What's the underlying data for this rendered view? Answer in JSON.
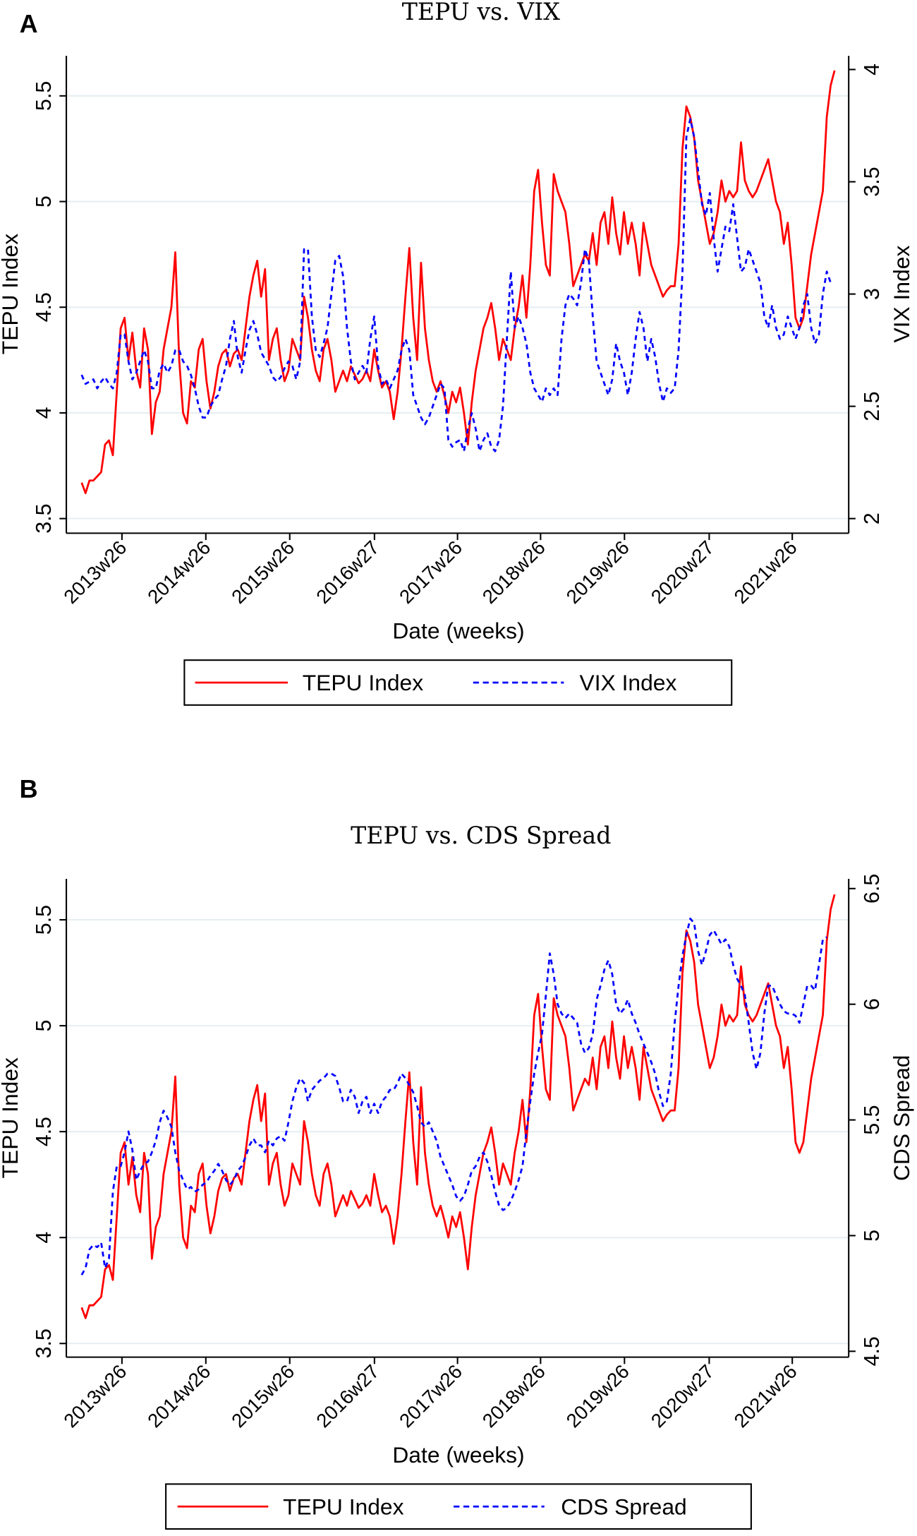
{
  "chart_data": [
    {
      "panel_letter": "A",
      "type": "line",
      "title": "TEPU vs. VIX",
      "xlabel": "Date (weeks)",
      "ylabel_left": "TEPU Index",
      "ylabel_right": "VIX Index",
      "x_ticks": [
        {
          "label": "2013w26",
          "year": 2013.5
        },
        {
          "label": "2014w26",
          "year": 2014.5
        },
        {
          "label": "2015w26",
          "year": 2015.5
        },
        {
          "label": "2016w27",
          "year": 2016.51
        },
        {
          "label": "2017w26",
          "year": 2017.5
        },
        {
          "label": "2018w26",
          "year": 2018.49
        },
        {
          "label": "2019w26",
          "year": 2019.49
        },
        {
          "label": "2020w27",
          "year": 2020.5
        },
        {
          "label": "2021w26",
          "year": 2021.49
        }
      ],
      "ylim_left": [
        3.5,
        5.5
      ],
      "yticks_left": [
        "3.5",
        "4",
        "4.5",
        "5",
        "5.5"
      ],
      "ylim_right": [
        2,
        4
      ],
      "yticks_right": [
        "2",
        "2.5",
        "3",
        "3.5",
        "4"
      ],
      "grid": true,
      "legend": {
        "placement": "bottom",
        "entries": [
          "TEPU Index",
          "VIX Index"
        ]
      },
      "colors": {
        "left": "#ff0000",
        "right": "#0000ff",
        "grid": "#e6eef2"
      },
      "x_start": 2013.02,
      "x_step": 0.0465,
      "series": [
        {
          "name": "TEPU Index",
          "axis": "left",
          "style": "solid",
          "values": [
            3.67,
            3.62,
            3.68,
            3.68,
            3.7,
            3.72,
            3.85,
            3.87,
            3.8,
            4.1,
            4.4,
            4.45,
            4.25,
            4.38,
            4.2,
            4.12,
            4.4,
            4.3,
            3.9,
            4.05,
            4.1,
            4.3,
            4.4,
            4.5,
            4.76,
            4.25,
            4.0,
            3.95,
            4.15,
            4.12,
            4.3,
            4.35,
            4.15,
            4.02,
            4.1,
            4.22,
            4.28,
            4.3,
            4.22,
            4.28,
            4.3,
            4.25,
            4.4,
            4.55,
            4.65,
            4.72,
            4.55,
            4.68,
            4.25,
            4.35,
            4.4,
            4.25,
            4.15,
            4.2,
            4.35,
            4.3,
            4.25,
            4.55,
            4.45,
            4.3,
            4.2,
            4.15,
            4.3,
            4.35,
            4.25,
            4.1,
            4.15,
            4.2,
            4.15,
            4.22,
            4.18,
            4.14,
            4.16,
            4.2,
            4.15,
            4.3,
            4.2,
            4.12,
            4.15,
            4.1,
            3.97,
            4.1,
            4.3,
            4.55,
            4.78,
            4.45,
            4.25,
            4.71,
            4.4,
            4.25,
            4.15,
            4.1,
            4.15,
            4.08,
            4.0,
            4.1,
            4.05,
            4.12,
            4.0,
            3.85,
            4.05,
            4.2,
            4.3,
            4.4,
            4.45,
            4.52,
            4.4,
            4.25,
            4.35,
            4.3,
            4.25,
            4.4,
            4.5,
            4.65,
            4.45,
            4.7,
            5.05,
            5.15,
            4.9,
            4.7,
            4.65,
            5.13,
            5.05,
            5.0,
            4.95,
            4.8,
            4.6,
            4.65,
            4.7,
            4.75,
            4.72,
            4.85,
            4.7,
            4.9,
            4.95,
            4.8,
            5.02,
            4.85,
            4.75,
            4.95,
            4.8,
            4.9,
            4.8,
            4.65,
            4.9,
            4.8,
            4.7,
            4.65,
            4.6,
            4.55,
            4.58,
            4.6,
            4.6,
            4.8,
            5.25,
            5.45,
            5.4,
            5.3,
            5.1,
            5.0,
            4.9,
            4.8,
            4.85,
            4.95,
            5.1,
            5.0,
            5.05,
            5.02,
            5.05,
            5.28,
            5.1,
            5.05,
            5.02,
            5.05,
            5.1,
            5.15,
            5.2,
            5.1,
            5.0,
            4.95,
            4.8,
            4.9,
            4.7,
            4.45,
            4.4,
            4.45,
            4.6,
            4.75,
            4.85,
            4.95,
            5.05,
            5.4,
            5.55,
            5.62
          ]
        },
        {
          "name": "VIX Index",
          "axis": "right",
          "style": "dashed",
          "values": [
            2.64,
            2.6,
            2.61,
            2.62,
            2.58,
            2.61,
            2.63,
            2.6,
            2.58,
            2.65,
            2.82,
            2.82,
            2.7,
            2.62,
            2.65,
            2.7,
            2.75,
            2.7,
            2.58,
            2.58,
            2.66,
            2.69,
            2.65,
            2.68,
            2.75,
            2.75,
            2.7,
            2.68,
            2.64,
            2.58,
            2.5,
            2.45,
            2.45,
            2.5,
            2.53,
            2.55,
            2.62,
            2.68,
            2.8,
            2.88,
            2.72,
            2.65,
            2.75,
            2.84,
            2.88,
            2.82,
            2.74,
            2.71,
            2.68,
            2.63,
            2.61,
            2.63,
            2.67,
            2.7,
            2.68,
            2.62,
            2.7,
            3.2,
            3.2,
            2.9,
            2.75,
            2.72,
            2.78,
            2.85,
            3.0,
            3.15,
            3.17,
            3.08,
            2.85,
            2.7,
            2.62,
            2.65,
            2.68,
            2.65,
            2.8,
            2.9,
            2.68,
            2.6,
            2.62,
            2.58,
            2.62,
            2.66,
            2.75,
            2.8,
            2.75,
            2.55,
            2.5,
            2.45,
            2.42,
            2.45,
            2.5,
            2.55,
            2.6,
            2.58,
            2.35,
            2.32,
            2.34,
            2.35,
            2.3,
            2.4,
            2.47,
            2.4,
            2.3,
            2.35,
            2.38,
            2.32,
            2.3,
            2.35,
            2.5,
            2.8,
            3.1,
            2.85,
            2.9,
            2.85,
            2.78,
            2.65,
            2.58,
            2.55,
            2.52,
            2.58,
            2.55,
            2.58,
            2.55,
            2.8,
            2.95,
            3.0,
            2.98,
            2.95,
            3.05,
            3.2,
            3.15,
            2.9,
            2.7,
            2.65,
            2.6,
            2.55,
            2.62,
            2.78,
            2.7,
            2.65,
            2.55,
            2.65,
            2.8,
            2.92,
            2.85,
            2.7,
            2.8,
            2.72,
            2.6,
            2.52,
            2.58,
            2.56,
            2.58,
            2.75,
            3.1,
            3.7,
            3.78,
            3.7,
            3.55,
            3.4,
            3.35,
            3.45,
            3.25,
            3.1,
            3.2,
            3.3,
            3.28,
            3.4,
            3.25,
            3.1,
            3.12,
            3.2,
            3.15,
            3.1,
            3.05,
            2.9,
            2.85,
            2.95,
            2.85,
            2.8,
            2.82,
            2.9,
            2.85,
            2.8,
            2.85,
            2.95,
            3.0,
            2.85,
            2.78,
            2.82,
            3.0,
            3.1,
            3.05
          ]
        }
      ]
    },
    {
      "panel_letter": "B",
      "type": "line",
      "title": "TEPU vs. CDS Spread",
      "xlabel": "Date (weeks)",
      "ylabel_left": "TEPU Index",
      "ylabel_right": "CDS Spread",
      "x_ticks": [
        {
          "label": "2013w26",
          "year": 2013.5
        },
        {
          "label": "2014w26",
          "year": 2014.5
        },
        {
          "label": "2015w26",
          "year": 2015.5
        },
        {
          "label": "2016w27",
          "year": 2016.51
        },
        {
          "label": "2017w26",
          "year": 2017.5
        },
        {
          "label": "2018w26",
          "year": 2018.49
        },
        {
          "label": "2019w26",
          "year": 2019.49
        },
        {
          "label": "2020w27",
          "year": 2020.5
        },
        {
          "label": "2021w26",
          "year": 2021.49
        }
      ],
      "ylim_left": [
        3.5,
        5.5
      ],
      "yticks_left": [
        "3.5",
        "4",
        "4.5",
        "5",
        "5.5"
      ],
      "ylim_right": [
        4.5,
        6.5
      ],
      "yticks_right": [
        "4.5",
        "5",
        "5.5",
        "6",
        "6.5"
      ],
      "grid": true,
      "legend": {
        "placement": "bottom",
        "entries": [
          "TEPU Index",
          "CDS Spread"
        ]
      },
      "colors": {
        "left": "#ff0000",
        "right": "#0000ff",
        "grid": "#e6eef2"
      },
      "x_start": 2013.02,
      "x_step": 0.0465,
      "series": [
        {
          "name": "TEPU Index",
          "axis": "left",
          "style": "solid",
          "values": [
            3.67,
            3.62,
            3.68,
            3.68,
            3.7,
            3.72,
            3.85,
            3.87,
            3.8,
            4.1,
            4.4,
            4.45,
            4.25,
            4.38,
            4.2,
            4.12,
            4.4,
            4.3,
            3.9,
            4.05,
            4.1,
            4.3,
            4.4,
            4.5,
            4.76,
            4.25,
            4.0,
            3.95,
            4.15,
            4.12,
            4.3,
            4.35,
            4.15,
            4.02,
            4.1,
            4.22,
            4.28,
            4.3,
            4.22,
            4.28,
            4.3,
            4.25,
            4.4,
            4.55,
            4.65,
            4.72,
            4.55,
            4.68,
            4.25,
            4.35,
            4.4,
            4.25,
            4.15,
            4.2,
            4.35,
            4.3,
            4.25,
            4.55,
            4.45,
            4.3,
            4.2,
            4.15,
            4.3,
            4.35,
            4.25,
            4.1,
            4.15,
            4.2,
            4.15,
            4.22,
            4.18,
            4.14,
            4.16,
            4.2,
            4.15,
            4.3,
            4.2,
            4.12,
            4.15,
            4.1,
            3.97,
            4.1,
            4.3,
            4.55,
            4.78,
            4.45,
            4.25,
            4.71,
            4.4,
            4.25,
            4.15,
            4.1,
            4.15,
            4.08,
            4.0,
            4.1,
            4.05,
            4.12,
            4.0,
            3.85,
            4.05,
            4.2,
            4.3,
            4.4,
            4.45,
            4.52,
            4.4,
            4.25,
            4.35,
            4.3,
            4.25,
            4.4,
            4.5,
            4.65,
            4.45,
            4.7,
            5.05,
            5.15,
            4.9,
            4.7,
            4.65,
            5.13,
            5.05,
            5.0,
            4.95,
            4.8,
            4.6,
            4.65,
            4.7,
            4.75,
            4.72,
            4.85,
            4.7,
            4.9,
            4.95,
            4.8,
            5.02,
            4.85,
            4.75,
            4.95,
            4.8,
            4.9,
            4.8,
            4.65,
            4.9,
            4.8,
            4.7,
            4.65,
            4.6,
            4.55,
            4.58,
            4.6,
            4.6,
            4.8,
            5.25,
            5.45,
            5.4,
            5.3,
            5.1,
            5.0,
            4.9,
            4.8,
            4.85,
            4.95,
            5.1,
            5.0,
            5.05,
            5.02,
            5.05,
            5.28,
            5.1,
            5.05,
            5.02,
            5.05,
            5.1,
            5.15,
            5.2,
            5.1,
            5.0,
            4.95,
            4.8,
            4.9,
            4.7,
            4.45,
            4.4,
            4.45,
            4.6,
            4.75,
            4.85,
            4.95,
            5.05,
            5.4,
            5.55,
            5.62
          ]
        },
        {
          "name": "CDS Spread",
          "axis": "right",
          "style": "dashed",
          "values": [
            4.83,
            4.86,
            4.94,
            4.96,
            4.95,
            4.97,
            4.86,
            4.9,
            5.19,
            5.3,
            5.3,
            5.36,
            5.45,
            5.37,
            5.24,
            5.28,
            5.31,
            5.32,
            5.36,
            5.41,
            5.49,
            5.54,
            5.51,
            5.47,
            5.36,
            5.28,
            5.24,
            5.2,
            5.21,
            5.19,
            5.2,
            5.22,
            5.23,
            5.26,
            5.28,
            5.31,
            5.28,
            5.24,
            5.22,
            5.24,
            5.28,
            5.3,
            5.34,
            5.39,
            5.42,
            5.39,
            5.39,
            5.36,
            5.41,
            5.39,
            5.42,
            5.43,
            5.41,
            5.49,
            5.58,
            5.64,
            5.68,
            5.66,
            5.58,
            5.63,
            5.65,
            5.67,
            5.68,
            5.7,
            5.7,
            5.69,
            5.64,
            5.58,
            5.58,
            5.63,
            5.6,
            5.53,
            5.58,
            5.6,
            5.53,
            5.57,
            5.53,
            5.58,
            5.6,
            5.63,
            5.63,
            5.66,
            5.7,
            5.68,
            5.65,
            5.62,
            5.56,
            5.49,
            5.47,
            5.49,
            5.45,
            5.41,
            5.34,
            5.3,
            5.26,
            5.22,
            5.17,
            5.15,
            5.17,
            5.22,
            5.28,
            5.3,
            5.34,
            5.36,
            5.32,
            5.26,
            5.19,
            5.13,
            5.11,
            5.12,
            5.15,
            5.19,
            5.24,
            5.3,
            5.45,
            5.58,
            5.7,
            5.79,
            5.87,
            6.04,
            6.22,
            6.13,
            6.0,
            5.96,
            5.94,
            5.96,
            5.94,
            5.92,
            5.83,
            5.79,
            5.81,
            5.87,
            6.02,
            6.08,
            6.15,
            6.19,
            6.13,
            6.0,
            5.96,
            5.98,
            6.02,
            5.96,
            5.92,
            5.87,
            5.83,
            5.79,
            5.75,
            5.7,
            5.62,
            5.56,
            5.58,
            5.7,
            5.92,
            6.08,
            6.21,
            6.3,
            6.37,
            6.35,
            6.23,
            6.17,
            6.23,
            6.3,
            6.32,
            6.29,
            6.26,
            6.28,
            6.25,
            6.17,
            6.11,
            6.08,
            6.04,
            5.92,
            5.79,
            5.72,
            5.79,
            5.96,
            6.08,
            6.08,
            6.04,
            6.0,
            5.97,
            5.96,
            5.96,
            5.95,
            5.92,
            6.0,
            6.08,
            6.08,
            6.06,
            6.17,
            6.28,
            6.29
          ]
        }
      ]
    }
  ]
}
